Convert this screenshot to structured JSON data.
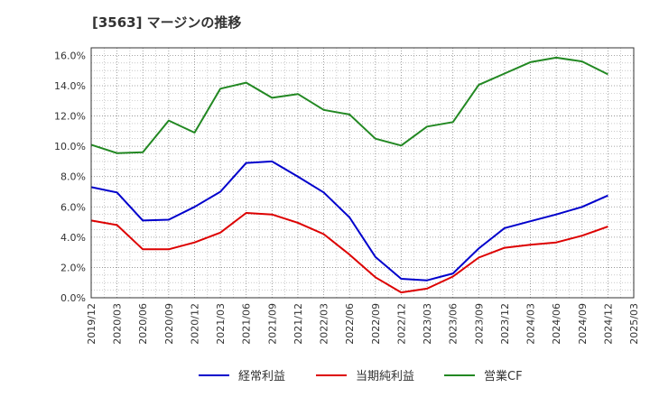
{
  "chart_data": {
    "type": "line",
    "title": "[3563]  マージンの推移",
    "xlabel": "",
    "ylabel": "",
    "ylim": [
      0,
      16.5
    ],
    "yticks": [
      "0.0%",
      "2.0%",
      "4.0%",
      "6.0%",
      "8.0%",
      "10.0%",
      "12.0%",
      "14.0%",
      "16.0%"
    ],
    "x": [
      "2019/12",
      "2020/03",
      "2020/06",
      "2020/09",
      "2020/12",
      "2021/03",
      "2021/06",
      "2021/09",
      "2021/12",
      "2022/03",
      "2022/06",
      "2022/09",
      "2022/12",
      "2023/03",
      "2023/06",
      "2023/09",
      "2023/12",
      "2024/03",
      "2024/06",
      "2024/09",
      "2024/12",
      "2025/03"
    ],
    "grid": true,
    "legend_position": "bottom",
    "series": [
      {
        "name": "経常利益",
        "color": "#0000cc",
        "values": [
          7.3,
          6.95,
          5.1,
          5.15,
          6.0,
          7.0,
          8.9,
          9.0,
          8.0,
          6.95,
          5.3,
          2.7,
          1.25,
          1.15,
          1.6,
          3.25,
          4.6,
          5.05,
          5.5,
          6.0,
          6.75,
          null
        ]
      },
      {
        "name": "当期純利益",
        "color": "#dd0000",
        "values": [
          5.1,
          4.8,
          3.2,
          3.2,
          3.65,
          4.3,
          5.6,
          5.5,
          4.95,
          4.2,
          2.85,
          1.35,
          0.35,
          0.6,
          1.4,
          2.65,
          3.3,
          3.5,
          3.65,
          4.1,
          4.7,
          null
        ]
      },
      {
        "name": "営業CF",
        "color": "#228822",
        "values": [
          10.1,
          9.55,
          9.6,
          11.7,
          10.9,
          13.8,
          14.2,
          13.2,
          13.45,
          12.4,
          12.1,
          10.5,
          10.05,
          11.3,
          11.6,
          14.05,
          14.8,
          15.55,
          15.85,
          15.6,
          14.75,
          null
        ]
      }
    ]
  }
}
